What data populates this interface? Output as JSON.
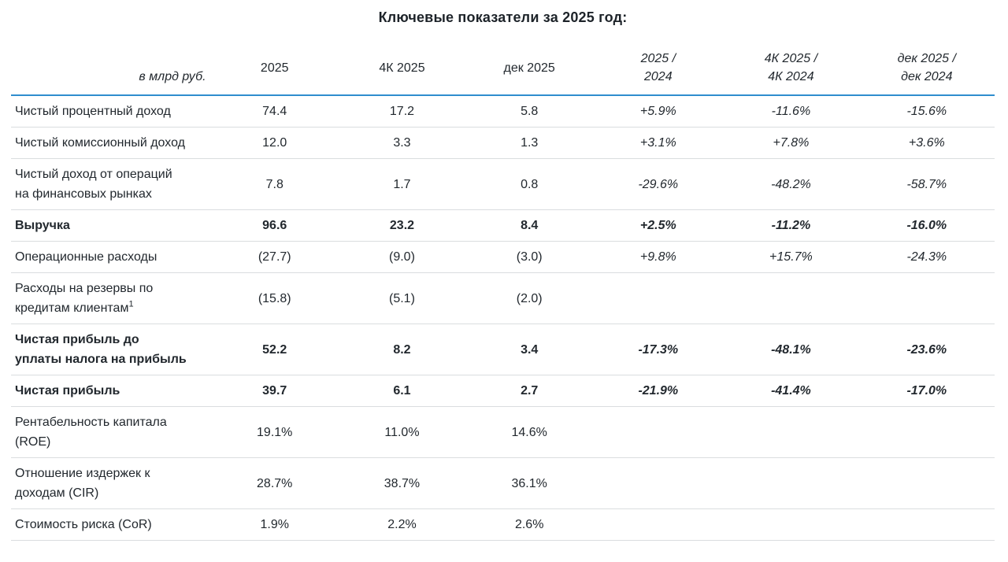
{
  "title": "Ключевые показатели за 2025 год:",
  "table": {
    "unit_label": "в млрд руб.",
    "columns": {
      "c1": "2025",
      "c2": "4К 2025",
      "c3": "дек 2025",
      "c4a": "2025 /",
      "c4b": "2024",
      "c5a": "4К 2025 /",
      "c5b": "4К 2024",
      "c6a": "дек 2025 /",
      "c6b": "дек 2024"
    },
    "rows": [
      {
        "label": "Чистый процентный доход",
        "bold": false,
        "values": [
          "74.4",
          "17.2",
          "5.8",
          "+5.9%",
          "-11.6%",
          "-15.6%"
        ]
      },
      {
        "label": "Чистый комиссионный доход",
        "bold": false,
        "values": [
          "12.0",
          "3.3",
          "1.3",
          "+3.1%",
          "+7.8%",
          "+3.6%"
        ]
      },
      {
        "label": "Чистый доход от операций на финансовых рынках",
        "bold": false,
        "values": [
          "7.8",
          "1.7",
          "0.8",
          "-29.6%",
          "-48.2%",
          "-58.7%"
        ]
      },
      {
        "label": "Выручка",
        "bold": true,
        "values": [
          "96.6",
          "23.2",
          "8.4",
          "+2.5%",
          "-11.2%",
          "-16.0%"
        ]
      },
      {
        "label": "Операционные расходы",
        "bold": false,
        "values": [
          "(27.7)",
          "(9.0)",
          "(3.0)",
          "+9.8%",
          "+15.7%",
          "-24.3%"
        ]
      },
      {
        "label": "Расходы на резервы по кредитам клиентам",
        "sup": "1",
        "bold": false,
        "values": [
          "(15.8)",
          "(5.1)",
          "(2.0)",
          "",
          "",
          ""
        ]
      },
      {
        "label": "Чистая прибыль до уплаты налога на прибыль",
        "bold": true,
        "values": [
          "52.2",
          "8.2",
          "3.4",
          "-17.3%",
          "-48.1%",
          "-23.6%"
        ]
      },
      {
        "label": "Чистая прибыль",
        "bold": true,
        "values": [
          "39.7",
          "6.1",
          "2.7",
          "-21.9%",
          "-41.4%",
          "-17.0%"
        ]
      },
      {
        "label": "Рентабельность капитала (ROE)",
        "bold": false,
        "values": [
          "19.1%",
          "11.0%",
          "14.6%",
          "",
          "",
          ""
        ]
      },
      {
        "label": "Отношение издержек к доходам (CIR)",
        "bold": false,
        "values": [
          "28.7%",
          "38.7%",
          "36.1%",
          "",
          "",
          ""
        ]
      },
      {
        "label": "Стоимость риска (CoR)",
        "bold": false,
        "values": [
          "1.9%",
          "2.2%",
          "2.6%",
          "",
          "",
          ""
        ]
      }
    ],
    "accent_rule_color": "#2f8dce",
    "divider_color": "#dadddf",
    "text_color": "#22282e"
  }
}
